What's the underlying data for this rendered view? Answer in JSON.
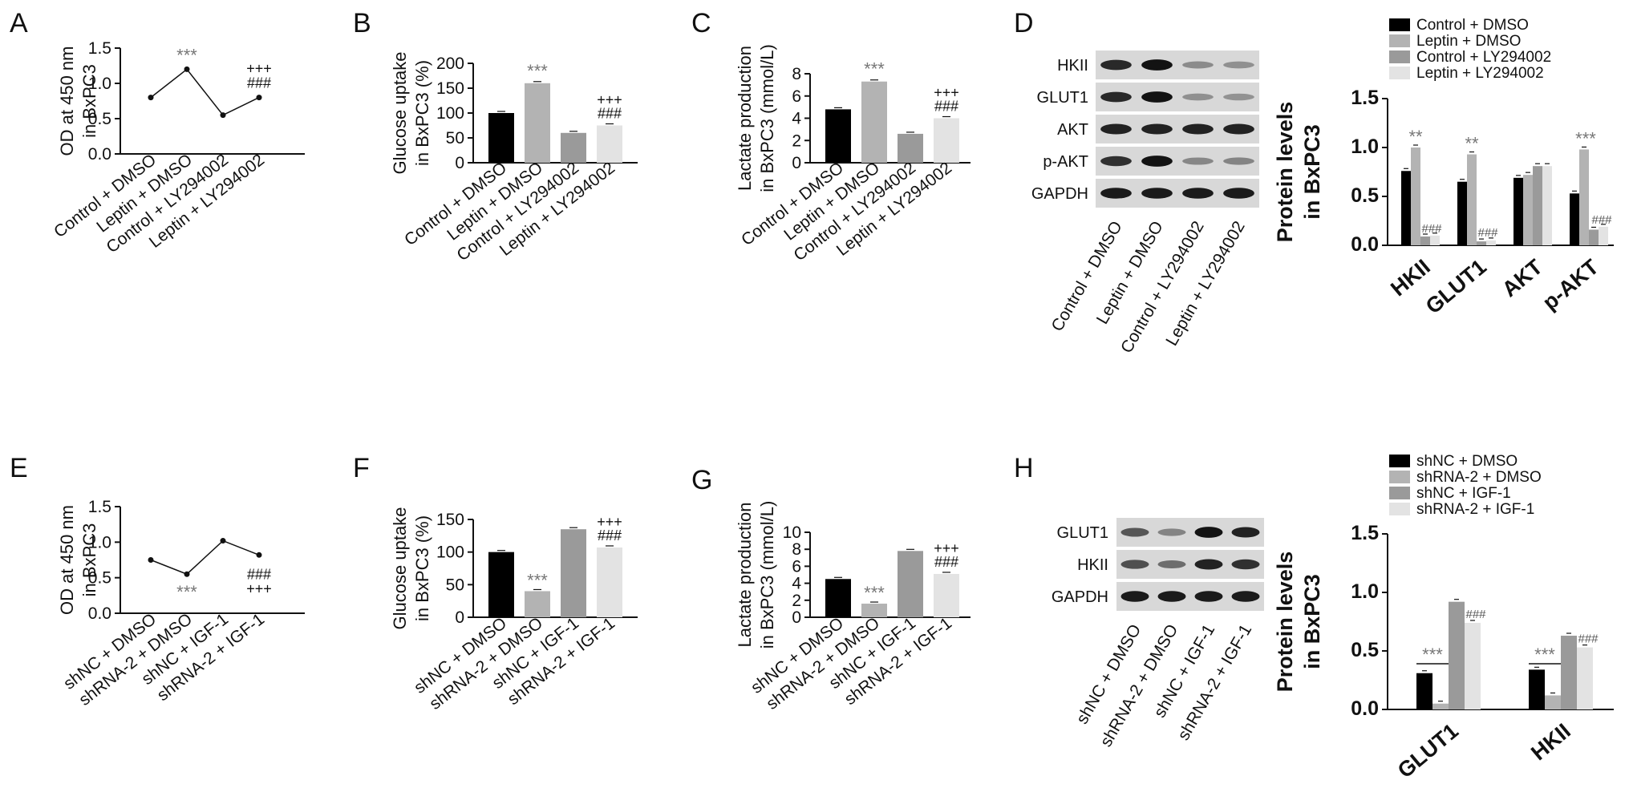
{
  "colors": {
    "c1": "#000000",
    "c2": "#b3b3b3",
    "c3": "#9a9a9a",
    "c4": "#e3e3e3"
  },
  "panels": {
    "A": {
      "letter": "A"
    },
    "B": {
      "letter": "B"
    },
    "C": {
      "letter": "C"
    },
    "D": {
      "letter": "D"
    },
    "E": {
      "letter": "E"
    },
    "F": {
      "letter": "F"
    },
    "G": {
      "letter": "G"
    },
    "H": {
      "letter": "H"
    }
  },
  "blots": {
    "D": {
      "bands": [
        "HKII",
        "GLUT1",
        "AKT",
        "p-AKT",
        "GAPDH"
      ],
      "lanes": [
        "Control + DMSO",
        "Leptin + DMSO",
        "Control + LY294002",
        "Leptin + LY294002"
      ]
    },
    "H": {
      "bands": [
        "GLUT1",
        "HKII",
        "GAPDH"
      ],
      "lanes": [
        "shNC + DMSO",
        "shRNA-2 + DMSO",
        "shNC + IGF-1",
        "shRNA-2 + IGF-1"
      ]
    }
  },
  "chart_data": [
    {
      "panel": "A",
      "type": "line",
      "categories": [
        "Control + DMSO",
        "Leptin + DMSO",
        "Control + LY294002",
        "Leptin + LY294002"
      ],
      "values": [
        0.8,
        1.2,
        0.55,
        0.8
      ],
      "ylabel": [
        "OD at 450 nm",
        "in BxPC3"
      ],
      "ylim": [
        0,
        1.5
      ],
      "yticks": [
        "0.0",
        "0.5",
        "1.0",
        "1.5"
      ],
      "annotations": [
        "***",
        "+++",
        "###"
      ]
    },
    {
      "panel": "B",
      "type": "bar",
      "categories": [
        "Control + DMSO",
        "Leptin + DMSO",
        "Control + LY294002",
        "Leptin + LY294002"
      ],
      "values": [
        100,
        160,
        60,
        75
      ],
      "ylabel": [
        "Glucose uptake",
        "in BxPC3 (%)"
      ],
      "ylim": [
        0,
        200
      ],
      "yticks": [
        "0",
        "50",
        "100",
        "150",
        "200"
      ],
      "annotations": [
        "***",
        "+++",
        "###"
      ]
    },
    {
      "panel": "C",
      "type": "bar",
      "categories": [
        "Control + DMSO",
        "Leptin + DMSO",
        "Control + LY294002",
        "Leptin + LY294002"
      ],
      "values": [
        4.8,
        7.3,
        2.6,
        4.0
      ],
      "ylabel": [
        "Lactate production",
        "in BxPC3 (mmol/L)"
      ],
      "ylim": [
        0,
        8
      ],
      "yticks": [
        "0",
        "2",
        "4",
        "6",
        "8"
      ],
      "annotations": [
        "***",
        "+++",
        "###"
      ]
    },
    {
      "panel": "D",
      "type": "bar",
      "categories": [
        "HKII",
        "GLUT1",
        "AKT",
        "p-AKT"
      ],
      "series": [
        {
          "name": "Control + DMSO",
          "values": [
            0.76,
            0.65,
            0.69,
            0.53
          ]
        },
        {
          "name": "Leptin + DMSO",
          "values": [
            1.0,
            0.93,
            0.72,
            0.98
          ]
        },
        {
          "name": "Control + LY294002",
          "values": [
            0.09,
            0.04,
            0.81,
            0.16
          ]
        },
        {
          "name": "Leptin + LY294002",
          "values": [
            0.1,
            0.05,
            0.81,
            0.19
          ]
        }
      ],
      "ylabel": [
        "Protein levels",
        "in BxPC3"
      ],
      "ylim": [
        0,
        1.5
      ],
      "yticks": [
        "0.0",
        "0.5",
        "1.0",
        "1.5"
      ],
      "annotations": [
        "**",
        "###",
        "**",
        "###",
        "***",
        "###"
      ],
      "legend": "top-right"
    },
    {
      "panel": "E",
      "type": "line",
      "categories": [
        "shNC + DMSO",
        "shRNA-2 + DMSO",
        "shNC + IGF-1",
        "shRNA-2 + IGF-1"
      ],
      "values": [
        0.75,
        0.55,
        1.02,
        0.82
      ],
      "ylabel": [
        "OD at 450 nm",
        "in BxPC3"
      ],
      "ylim": [
        0,
        1.5
      ],
      "yticks": [
        "0.0",
        "0.5",
        "1.0",
        "1.5"
      ],
      "annotations": [
        "***",
        "###",
        "+++"
      ]
    },
    {
      "panel": "F",
      "type": "bar",
      "categories": [
        "shNC + DMSO",
        "shRNA-2 + DMSO",
        "shNC + IGF-1",
        "shRNA-2 + IGF-1"
      ],
      "values": [
        100,
        40,
        135,
        107
      ],
      "ylabel": [
        "Glucose uptake",
        "in BxPC3 (%)"
      ],
      "ylim": [
        0,
        150
      ],
      "yticks": [
        "0",
        "50",
        "100",
        "150"
      ],
      "annotations": [
        "***",
        "+++",
        "###"
      ]
    },
    {
      "panel": "G",
      "type": "bar",
      "categories": [
        "shNC + DMSO",
        "shRNA-2 + DMSO",
        "shNC + IGF-1",
        "shRNA-2 + IGF-1"
      ],
      "values": [
        4.5,
        1.6,
        7.8,
        5.1
      ],
      "ylabel": [
        "Lactate production",
        "in BxPC3 (mmol/L)"
      ],
      "ylim": [
        0,
        10
      ],
      "yticks": [
        "0",
        "2",
        "4",
        "6",
        "8",
        "10"
      ],
      "annotations": [
        "***",
        "+++",
        "###"
      ]
    },
    {
      "panel": "H",
      "type": "bar",
      "categories": [
        "GLUT1",
        "HKII"
      ],
      "series": [
        {
          "name": "shNC + DMSO",
          "values": [
            0.31,
            0.34
          ]
        },
        {
          "name": "shRNA-2 + DMSO",
          "values": [
            0.05,
            0.12
          ]
        },
        {
          "name": "shNC + IGF-1",
          "values": [
            0.92,
            0.63
          ]
        },
        {
          "name": "shRNA-2 + IGF-1",
          "values": [
            0.74,
            0.53
          ]
        }
      ],
      "ylabel": [
        "Protein levels",
        "in BxPC3"
      ],
      "ylim": [
        0,
        1.5
      ],
      "yticks": [
        "0.0",
        "0.5",
        "1.0",
        "1.5"
      ],
      "annotations": [
        "***",
        "###",
        "***",
        "###"
      ],
      "legend": "top-right"
    }
  ]
}
